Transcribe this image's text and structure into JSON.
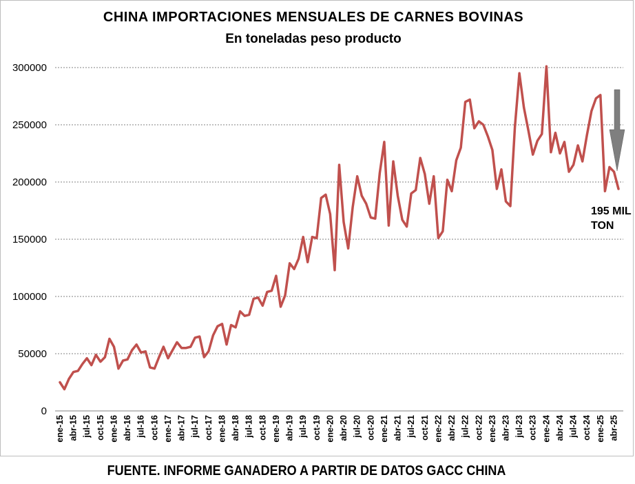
{
  "chart_data": {
    "type": "line",
    "title": "CHINA IMPORTACIONES MENSUALES DE CARNES BOVINAS",
    "subtitle": "En toneladas peso producto",
    "source": "FUENTE. INFORME GANADERO A PARTIR DE DATOS GACC CHINA",
    "annotation": "195 MIL\nTON",
    "ylim": [
      0,
      300000
    ],
    "yticks": [
      "0",
      "50000",
      "100000",
      "150000",
      "200000",
      "250000",
      "300000"
    ],
    "xtick_labels": [
      "ene-15",
      "abr-15",
      "jul-15",
      "oct-15",
      "ene-16",
      "abr-16",
      "jul-16",
      "oct-16",
      "ene-17",
      "abr-17",
      "jul-17",
      "oct-17",
      "ene-18",
      "abr-18",
      "jul-18",
      "oct-18",
      "ene-19",
      "abr-19",
      "jul-19",
      "oct-19",
      "ene-20",
      "abr-20",
      "jul-20",
      "oct-20",
      "ene-21",
      "abr-21",
      "jul-21",
      "oct-21",
      "ene-22",
      "abr-22",
      "jul-22",
      "oct-22",
      "ene-23",
      "abr-23",
      "jul-23",
      "oct-23",
      "ene-24",
      "abr-24",
      "jul-24",
      "oct-24",
      "ene-25",
      "abr-25"
    ],
    "grid": true,
    "line_color": "#c0504d",
    "arrow_color": "#7f7f7f",
    "series": [
      {
        "values": [
          25000,
          19000,
          28000,
          34000,
          35000,
          41000,
          46000,
          40000,
          49000,
          43000,
          47000,
          63000,
          56000,
          37000,
          44000,
          45000,
          53000,
          58000,
          51000,
          52000,
          38000,
          37000,
          47000,
          56000,
          46000,
          53000,
          60000,
          55000,
          55000,
          56000,
          64000,
          65000,
          47000,
          52000,
          66000,
          74000,
          76000,
          58000,
          75000,
          73000,
          87000,
          83000,
          84000,
          98000,
          99000,
          92000,
          104000,
          105000,
          118000,
          91000,
          101000,
          129000,
          124000,
          133000,
          152000,
          130000,
          152000,
          151000,
          186000,
          189000,
          172000,
          123000,
          215000,
          165000,
          142000,
          178000,
          205000,
          188000,
          181000,
          169000,
          168000,
          208000,
          235000,
          162000,
          218000,
          188000,
          167000,
          161000,
          190000,
          193000,
          221000,
          207000,
          181000,
          205000,
          151000,
          157000,
          202000,
          192000,
          219000,
          230000,
          270000,
          272000,
          247000,
          253000,
          250000,
          240000,
          228000,
          194000,
          211000,
          183000,
          179000,
          248000,
          295000,
          265000,
          245000,
          224000,
          236000,
          242000,
          301000,
          226000,
          243000,
          225000,
          235000,
          209000,
          215000,
          232000,
          218000,
          241000,
          262000,
          273000,
          276000,
          192000,
          213000,
          209000,
          194000
        ]
      }
    ]
  }
}
